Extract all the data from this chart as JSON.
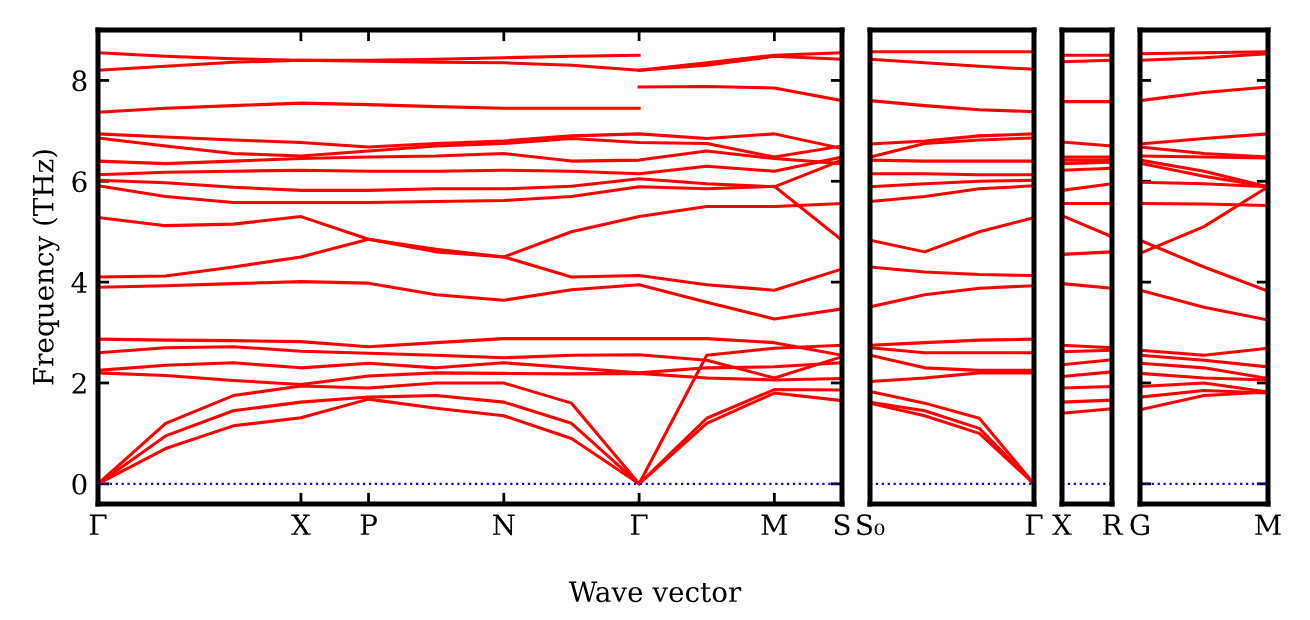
{
  "chart_data": [
    {
      "type": "line",
      "ylabel": "Frequency (THz)",
      "xlabel": "Wave vector",
      "ylim": [
        -0.4,
        9.0
      ],
      "yticks": [
        0,
        2,
        4,
        6,
        8
      ],
      "categories": [
        "Γ",
        null,
        null,
        "X",
        "P",
        null,
        "N",
        null,
        "Γ",
        null,
        "M",
        "S"
      ],
      "ref_lines": [
        {
          "axis": "y",
          "value": 0,
          "color": "#0000ff",
          "line_style": "dotted"
        }
      ],
      "series": [
        {
          "color": "#ff0000",
          "values": [
            0,
            0.7,
            1.15,
            1.31,
            1.68,
            1.5,
            1.35,
            0.9,
            0,
            1.2,
            1.8,
            1.65
          ]
        },
        {
          "color": "#ff0000",
          "values": [
            0,
            0.95,
            1.45,
            1.62,
            1.72,
            1.75,
            1.62,
            1.2,
            0,
            1.3,
            1.87,
            1.86
          ]
        },
        {
          "color": "#ff0000",
          "values": [
            0,
            1.2,
            1.75,
            1.94,
            1.9,
            2.0,
            2.0,
            1.6,
            0,
            2.55,
            2.69,
            2.75
          ]
        },
        {
          "color": "#ff0000",
          "values": [
            2.2,
            2.15,
            2.05,
            1.97,
            2.14,
            2.2,
            2.19,
            2.18,
            2.19,
            2.1,
            2.06,
            2.09
          ]
        },
        {
          "color": "#ff0000",
          "values": [
            2.25,
            2.35,
            2.4,
            2.3,
            2.39,
            2.3,
            2.4,
            2.3,
            2.2,
            2.3,
            2.32,
            2.4
          ]
        },
        {
          "color": "#ff0000",
          "values": [
            2.6,
            2.7,
            2.72,
            2.63,
            2.59,
            2.55,
            2.5,
            2.55,
            2.56,
            2.45,
            2.1,
            2.52
          ]
        },
        {
          "color": "#ff0000",
          "values": [
            2.87,
            2.85,
            2.84,
            2.82,
            2.72,
            2.8,
            2.88,
            2.88,
            2.88,
            2.88,
            2.8,
            2.55
          ]
        },
        {
          "color": "#ff0000",
          "values": [
            3.9,
            3.93,
            3.97,
            4.01,
            3.98,
            3.75,
            3.64,
            3.85,
            3.95,
            3.6,
            3.27,
            3.47
          ]
        },
        {
          "color": "#ff0000",
          "values": [
            4.1,
            4.12,
            4.3,
            4.5,
            4.85,
            4.6,
            4.5,
            4.1,
            4.13,
            3.95,
            3.84,
            4.26
          ]
        },
        {
          "color": "#ff0000",
          "values": [
            5.28,
            5.12,
            5.15,
            5.3,
            4.85,
            4.65,
            4.5,
            5.0,
            5.3,
            5.5,
            5.5,
            5.56
          ]
        },
        {
          "color": "#ff0000",
          "values": [
            5.91,
            5.7,
            5.58,
            5.58,
            5.58,
            5.6,
            5.62,
            5.7,
            5.89,
            5.85,
            5.9,
            4.83
          ]
        },
        {
          "color": "#ff0000",
          "values": [
            6.02,
            5.97,
            5.88,
            5.82,
            5.82,
            5.85,
            5.85,
            5.9,
            6.05,
            5.95,
            5.89,
            6.42
          ]
        },
        {
          "color": "#ff0000",
          "values": [
            6.13,
            6.18,
            6.2,
            6.22,
            6.2,
            6.2,
            6.22,
            6.2,
            6.15,
            6.3,
            6.2,
            6.48
          ]
        },
        {
          "color": "#ff0000",
          "values": [
            6.4,
            6.35,
            6.4,
            6.45,
            6.48,
            6.5,
            6.55,
            6.4,
            6.42,
            6.6,
            6.45,
            6.35
          ]
        },
        {
          "color": "#ff0000",
          "values": [
            6.86,
            6.7,
            6.55,
            6.5,
            6.6,
            6.7,
            6.75,
            6.85,
            6.77,
            6.75,
            6.48,
            6.7
          ]
        },
        {
          "color": "#ff0000",
          "values": [
            6.94,
            6.88,
            6.82,
            6.77,
            6.68,
            6.75,
            6.8,
            6.9,
            6.94,
            6.85,
            6.94,
            6.65
          ]
        },
        {
          "color": "#ff0000",
          "values": [
            7.37,
            7.45,
            7.5,
            7.55,
            7.52,
            7.48,
            7.45,
            7.45,
            7.45,
            null,
            null,
            null
          ]
        },
        {
          "color": "#ff0000",
          "values": [
            null,
            null,
            null,
            null,
            null,
            null,
            null,
            null,
            7.87,
            7.88,
            7.85,
            7.6
          ]
        },
        {
          "color": "#ff0000",
          "values": [
            8.2,
            8.28,
            8.36,
            8.4,
            8.38,
            8.36,
            8.35,
            8.3,
            8.2,
            8.3,
            8.48,
            8.42
          ]
        },
        {
          "color": "#ff0000",
          "values": [
            8.55,
            8.48,
            8.43,
            8.4,
            8.4,
            8.42,
            8.45,
            8.48,
            8.5,
            null,
            null,
            null
          ]
        },
        {
          "color": "#ff0000",
          "values": [
            null,
            null,
            null,
            null,
            null,
            null,
            null,
            null,
            8.2,
            8.35,
            8.5,
            8.55
          ]
        }
      ]
    },
    {
      "type": "line",
      "tick_labels": "x",
      "ylim": [
        -0.4,
        9.0
      ],
      "yticks": [
        0,
        2,
        4,
        6,
        8
      ],
      "categories": [
        "S₀",
        null,
        null,
        "Γ"
      ],
      "ref_lines": [
        {
          "axis": "y",
          "value": 0,
          "color": "#0000ff",
          "line_style": "dotted"
        }
      ],
      "series": [
        {
          "color": "#ff0000",
          "values": [
            1.6,
            1.35,
            1.0,
            0
          ]
        },
        {
          "color": "#ff0000",
          "values": [
            1.62,
            1.45,
            1.1,
            0
          ]
        },
        {
          "color": "#ff0000",
          "values": [
            1.83,
            1.6,
            1.3,
            0
          ]
        },
        {
          "color": "#ff0000",
          "values": [
            2.03,
            2.1,
            2.2,
            2.2
          ]
        },
        {
          "color": "#ff0000",
          "values": [
            2.55,
            2.3,
            2.25,
            2.25
          ]
        },
        {
          "color": "#ff0000",
          "values": [
            2.7,
            2.6,
            2.6,
            2.6
          ]
        },
        {
          "color": "#ff0000",
          "values": [
            2.75,
            2.8,
            2.85,
            2.87
          ]
        },
        {
          "color": "#ff0000",
          "values": [
            3.51,
            3.75,
            3.88,
            3.93
          ]
        },
        {
          "color": "#ff0000",
          "values": [
            4.3,
            4.2,
            4.15,
            4.13
          ]
        },
        {
          "color": "#ff0000",
          "values": [
            4.83,
            4.6,
            5.0,
            5.28
          ]
        },
        {
          "color": "#ff0000",
          "values": [
            5.6,
            5.7,
            5.85,
            5.91
          ]
        },
        {
          "color": "#ff0000",
          "values": [
            5.89,
            5.95,
            6.0,
            6.02
          ]
        },
        {
          "color": "#ff0000",
          "values": [
            6.15,
            6.15,
            6.13,
            6.13
          ]
        },
        {
          "color": "#ff0000",
          "values": [
            6.42,
            6.4,
            6.4,
            6.4
          ]
        },
        {
          "color": "#ff0000",
          "values": [
            6.48,
            6.75,
            6.82,
            6.86
          ]
        },
        {
          "color": "#ff0000",
          "values": [
            6.74,
            6.8,
            6.9,
            6.94
          ]
        },
        {
          "color": "#ff0000",
          "values": [
            7.6,
            7.5,
            7.42,
            7.38
          ]
        },
        {
          "color": "#ff0000",
          "values": [
            8.42,
            8.35,
            8.28,
            8.22
          ]
        },
        {
          "color": "#ff0000",
          "values": [
            8.57,
            8.57,
            8.57,
            8.57
          ]
        }
      ]
    },
    {
      "type": "line",
      "tick_labels": "x",
      "ylim": [
        -0.4,
        9.0
      ],
      "yticks": [
        0,
        2,
        4,
        6,
        8
      ],
      "categories": [
        "X",
        "R"
      ],
      "ref_lines": [
        {
          "axis": "y",
          "value": 0,
          "color": "#0000ff",
          "line_style": "dotted"
        }
      ],
      "series": [
        {
          "color": "#ff0000",
          "values": [
            8.5,
            8.5
          ]
        },
        {
          "color": "#ff0000",
          "values": [
            8.37,
            8.4
          ]
        },
        {
          "color": "#ff0000",
          "values": [
            7.58,
            7.58
          ]
        },
        {
          "color": "#ff0000",
          "values": [
            6.78,
            6.7
          ]
        },
        {
          "color": "#ff0000",
          "values": [
            6.48,
            6.48
          ]
        },
        {
          "color": "#ff0000",
          "values": [
            6.42,
            6.42
          ]
        },
        {
          "color": "#ff0000",
          "values": [
            6.35,
            6.38
          ]
        },
        {
          "color": "#ff0000",
          "values": [
            6.22,
            6.26
          ]
        },
        {
          "color": "#ff0000",
          "values": [
            5.82,
            5.95
          ]
        },
        {
          "color": "#ff0000",
          "values": [
            5.56,
            5.56
          ]
        },
        {
          "color": "#ff0000",
          "values": [
            5.32,
            4.9
          ]
        },
        {
          "color": "#ff0000",
          "values": [
            4.55,
            4.6
          ]
        },
        {
          "color": "#ff0000",
          "values": [
            3.97,
            3.88
          ]
        },
        {
          "color": "#ff0000",
          "values": [
            2.75,
            2.7
          ]
        },
        {
          "color": "#ff0000",
          "values": [
            2.62,
            2.65
          ]
        },
        {
          "color": "#ff0000",
          "values": [
            2.36,
            2.46
          ]
        },
        {
          "color": "#ff0000",
          "values": [
            2.13,
            2.22
          ]
        },
        {
          "color": "#ff0000",
          "values": [
            1.9,
            1.93
          ]
        },
        {
          "color": "#ff0000",
          "values": [
            1.62,
            1.66
          ]
        },
        {
          "color": "#ff0000",
          "values": [
            1.4,
            1.49
          ]
        }
      ]
    },
    {
      "type": "line",
      "tick_labels": "x",
      "ylim": [
        -0.4,
        9.0
      ],
      "yticks": [
        0,
        2,
        4,
        6,
        8
      ],
      "categories": [
        "G",
        null,
        "M"
      ],
      "ref_lines": [
        {
          "axis": "y",
          "value": 0,
          "color": "#0000ff",
          "line_style": "dotted"
        }
      ],
      "series": [
        {
          "color": "#ff0000",
          "values": [
            8.53,
            8.55,
            8.57
          ]
        },
        {
          "color": "#ff0000",
          "values": [
            8.4,
            8.45,
            8.53
          ]
        },
        {
          "color": "#ff0000",
          "values": [
            7.6,
            7.76,
            7.87
          ]
        },
        {
          "color": "#ff0000",
          "values": [
            6.74,
            6.85,
            6.94
          ]
        },
        {
          "color": "#ff0000",
          "values": [
            6.68,
            6.55,
            6.48
          ]
        },
        {
          "color": "#ff0000",
          "values": [
            6.5,
            6.48,
            6.46
          ]
        },
        {
          "color": "#ff0000",
          "values": [
            6.42,
            6.2,
            5.89
          ]
        },
        {
          "color": "#ff0000",
          "values": [
            6.36,
            6.1,
            5.89
          ]
        },
        {
          "color": "#ff0000",
          "values": [
            5.98,
            5.95,
            5.89
          ]
        },
        {
          "color": "#ff0000",
          "values": [
            5.56,
            5.55,
            5.52
          ]
        },
        {
          "color": "#ff0000",
          "values": [
            4.83,
            4.3,
            3.82
          ]
        },
        {
          "color": "#ff0000",
          "values": [
            4.57,
            5.1,
            5.89
          ]
        },
        {
          "color": "#ff0000",
          "values": [
            3.84,
            3.5,
            3.25
          ]
        },
        {
          "color": "#ff0000",
          "values": [
            2.65,
            2.55,
            2.69
          ]
        },
        {
          "color": "#ff0000",
          "values": [
            2.55,
            2.45,
            2.32
          ]
        },
        {
          "color": "#ff0000",
          "values": [
            2.39,
            2.3,
            2.09
          ]
        },
        {
          "color": "#ff0000",
          "values": [
            2.19,
            2.1,
            2.06
          ]
        },
        {
          "color": "#ff0000",
          "values": [
            1.93,
            2.0,
            1.82
          ]
        },
        {
          "color": "#ff0000",
          "values": [
            1.72,
            1.85,
            1.8
          ]
        },
        {
          "color": "#ff0000",
          "values": [
            1.47,
            1.75,
            1.82
          ]
        }
      ]
    }
  ]
}
